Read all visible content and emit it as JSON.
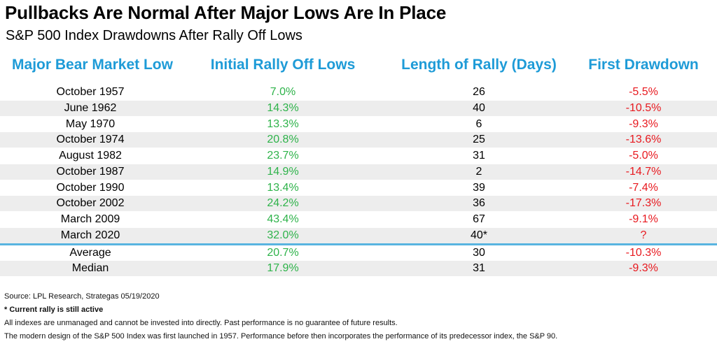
{
  "title": "Pullbacks Are Normal After Major Lows Are In Place",
  "subtitle": "S&P 500 Index Drawdowns After Rally Off Lows",
  "columns": [
    "Major Bear Market Low",
    "Initial Rally Off Lows",
    "Length of Rally (Days)",
    "First Drawdown"
  ],
  "colors": {
    "header": "#1e9bd7",
    "positive": "#2eb34a",
    "negative": "#e8191f",
    "shade": "#ededed",
    "divider": "#58b4e0"
  },
  "chart_data": {
    "type": "table",
    "title": "Pullbacks Are Normal After Major Lows Are In Place",
    "subtitle": "S&P 500 Index Drawdowns After Rally Off Lows",
    "columns": [
      "Major Bear Market Low",
      "Initial Rally Off Lows",
      "Length of Rally (Days)",
      "First Drawdown"
    ],
    "rows": [
      [
        "October 1957",
        "7.0%",
        "26",
        "-5.5%"
      ],
      [
        "June 1962",
        "14.3%",
        "40",
        "-10.5%"
      ],
      [
        "May 1970",
        "13.3%",
        "6",
        "-9.3%"
      ],
      [
        "October 1974",
        "20.8%",
        "25",
        "-13.6%"
      ],
      [
        "August 1982",
        "23.7%",
        "31",
        "-5.0%"
      ],
      [
        "October 1987",
        "14.9%",
        "2",
        "-14.7%"
      ],
      [
        "October 1990",
        "13.4%",
        "39",
        "-7.4%"
      ],
      [
        "October 2002",
        "24.2%",
        "36",
        "-17.3%"
      ],
      [
        "March 2009",
        "43.4%",
        "67",
        "-9.1%"
      ],
      [
        "March 2020",
        "32.0%",
        "40*",
        "?"
      ]
    ],
    "summary_rows": [
      [
        "Average",
        "20.7%",
        "30",
        "-10.3%"
      ],
      [
        "Median",
        "17.9%",
        "31",
        "-9.3%"
      ]
    ]
  },
  "footnotes": {
    "source": "Source: LPL Research, Strategas 05/19/2020",
    "note": "* Current rally is still active",
    "disclaimer": "All indexes are unmanaged and cannot be invested into directly. Past performance is no guarantee of future results.",
    "history": "The modern design of the S&P 500 Index was first launched in 1957. Performance before then incorporates the performance of its predecessor index, the S&P 90."
  }
}
